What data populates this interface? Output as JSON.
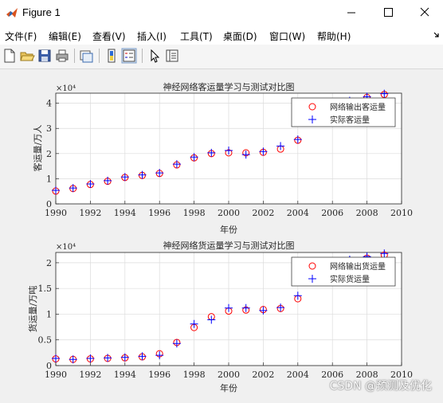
{
  "window": {
    "title": "Figure 1"
  },
  "menu": [
    "文件(F)",
    "编辑(E)",
    "查看(V)",
    "插入(I)",
    "工具(T)",
    "桌面(D)",
    "窗口(W)",
    "帮助(H)"
  ],
  "toolbar": [
    "new-figure-icon",
    "open-file-icon",
    "save-icon",
    "print-icon",
    "link-plot-icon",
    "insert-colorbar-icon",
    "insert-legend-icon",
    "edit-plot-cursor-icon",
    "property-inspector-icon"
  ],
  "watermark": "CSDN @预测及优化",
  "chart_data": [
    {
      "type": "scatter",
      "title": "神经网络客运量学习与测试对比图",
      "xlabel": "年份",
      "ylabel": "客运量/万人",
      "exponent": "×10⁴",
      "xlim": [
        1990,
        2010
      ],
      "ylim": [
        0,
        4.4
      ],
      "xticks": [
        "1990",
        "1992",
        "1994",
        "1996",
        "1998",
        "2000",
        "2002",
        "2004",
        "2006",
        "2008",
        "2010"
      ],
      "yticks": [
        "0",
        "1",
        "2",
        "3",
        "4"
      ],
      "grid": true,
      "legend_position": "top-right",
      "x": [
        1990,
        1991,
        1992,
        1993,
        1994,
        1995,
        1996,
        1997,
        1998,
        1999,
        2000,
        2001,
        2002,
        2003,
        2004,
        2007,
        2008,
        2009
      ],
      "series": [
        {
          "name": "网络输出客运量",
          "marker": "circle",
          "color": "#ff0000",
          "values": [
            0.51,
            0.61,
            0.77,
            0.9,
            1.05,
            1.13,
            1.21,
            1.55,
            1.83,
            2.0,
            2.03,
            2.03,
            2.05,
            2.18,
            2.53,
            4.07,
            4.23,
            4.35
          ]
        },
        {
          "name": "实际客运量",
          "marker": "plus",
          "color": "#0000ff",
          "values": [
            0.54,
            0.63,
            0.79,
            0.92,
            1.07,
            1.15,
            1.23,
            1.58,
            1.86,
            2.03,
            2.12,
            1.96,
            2.08,
            2.3,
            2.56,
            4.1,
            4.26,
            4.38
          ]
        }
      ]
    },
    {
      "type": "scatter",
      "title": "神经网络货运量学习与测试对比图",
      "xlabel": "年份",
      "ylabel": "货运量/万吨",
      "exponent": "×10⁴",
      "xlim": [
        1990,
        2010
      ],
      "ylim": [
        0,
        2.2
      ],
      "xticks": [
        "1990",
        "1992",
        "1994",
        "1996",
        "1998",
        "2000",
        "2002",
        "2004",
        "2006",
        "2008",
        "2010"
      ],
      "yticks": [
        "0",
        "0.5",
        "1",
        "1.5",
        "2"
      ],
      "grid": true,
      "legend_position": "top-right",
      "x": [
        1990,
        1991,
        1992,
        1993,
        1994,
        1995,
        1996,
        1997,
        1998,
        1999,
        2000,
        2001,
        2002,
        2003,
        2004,
        2007,
        2008,
        2009
      ],
      "series": [
        {
          "name": "网络输出货运量",
          "marker": "circle",
          "color": "#ff0000",
          "values": [
            0.13,
            0.12,
            0.13,
            0.14,
            0.15,
            0.17,
            0.23,
            0.45,
            0.74,
            0.95,
            1.06,
            1.08,
            1.09,
            1.11,
            1.3,
            2.04,
            2.09,
            2.15
          ]
        },
        {
          "name": "实际货运量",
          "marker": "plus",
          "color": "#0000ff",
          "values": [
            0.14,
            0.12,
            0.14,
            0.15,
            0.16,
            0.18,
            0.2,
            0.43,
            0.81,
            0.89,
            1.12,
            1.12,
            1.07,
            1.13,
            1.36,
            2.06,
            2.12,
            2.18
          ]
        }
      ]
    }
  ]
}
